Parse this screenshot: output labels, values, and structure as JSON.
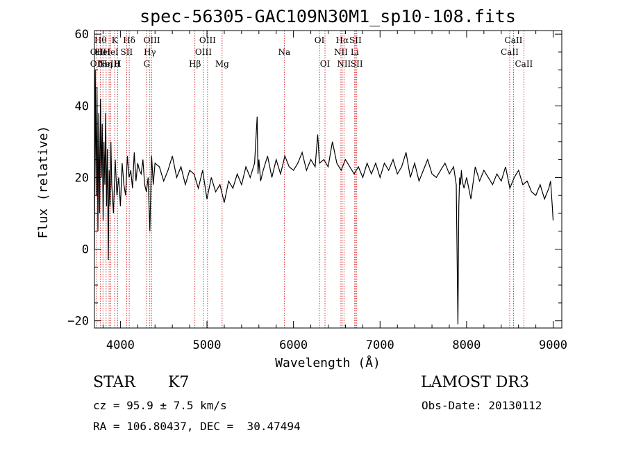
{
  "chart_data": {
    "type": "line",
    "title": "spec-56305-GAC109N30M1_sp10-108.fits",
    "xlabel": "Wavelength (Å)",
    "ylabel": "Flux (relative)",
    "xlim": [
      3700,
      9100
    ],
    "ylim": [
      -22,
      61
    ],
    "xticks": [
      4000,
      5000,
      6000,
      7000,
      8000,
      9000
    ],
    "yticks": [
      -20,
      0,
      20,
      40,
      60
    ],
    "series": [
      {
        "name": "flux",
        "x": [
          3700,
          3710,
          3720,
          3730,
          3740,
          3750,
          3760,
          3770,
          3780,
          3790,
          3800,
          3810,
          3820,
          3830,
          3840,
          3850,
          3860,
          3870,
          3880,
          3890,
          3900,
          3920,
          3940,
          3960,
          3980,
          4000,
          4020,
          4040,
          4060,
          4080,
          4100,
          4120,
          4140,
          4160,
          4180,
          4200,
          4220,
          4240,
          4260,
          4280,
          4300,
          4320,
          4340,
          4360,
          4380,
          4400,
          4450,
          4500,
          4550,
          4600,
          4650,
          4700,
          4750,
          4800,
          4850,
          4900,
          4950,
          5000,
          5050,
          5100,
          5150,
          5200,
          5250,
          5300,
          5350,
          5400,
          5450,
          5500,
          5550,
          5580,
          5590,
          5600,
          5620,
          5650,
          5700,
          5750,
          5800,
          5850,
          5900,
          5950,
          6000,
          6050,
          6100,
          6150,
          6200,
          6250,
          6280,
          6300,
          6350,
          6400,
          6450,
          6500,
          6550,
          6600,
          6650,
          6700,
          6750,
          6800,
          6850,
          6900,
          6950,
          7000,
          7050,
          7100,
          7150,
          7200,
          7250,
          7300,
          7350,
          7400,
          7450,
          7500,
          7550,
          7600,
          7650,
          7700,
          7750,
          7800,
          7850,
          7880,
          7900,
          7910,
          7920,
          7930,
          7940,
          7950,
          7970,
          8000,
          8050,
          8100,
          8150,
          8200,
          8250,
          8300,
          8350,
          8400,
          8450,
          8500,
          8550,
          8600,
          8650,
          8700,
          8750,
          8800,
          8850,
          8900,
          8950,
          8970,
          8990,
          9000
        ],
        "values": [
          0,
          50,
          15,
          45,
          5,
          38,
          10,
          42,
          20,
          35,
          8,
          30,
          18,
          38,
          12,
          28,
          -3,
          22,
          12,
          30,
          18,
          10,
          25,
          15,
          20,
          12,
          24,
          18,
          15,
          26,
          20,
          22,
          17,
          27,
          19,
          24,
          22,
          21,
          25,
          18,
          16,
          20,
          5,
          26,
          18,
          24,
          23,
          19,
          22,
          26,
          20,
          23,
          18,
          22,
          21,
          17,
          22,
          14,
          20,
          16,
          18,
          13,
          19,
          17,
          21,
          18,
          23,
          20,
          24,
          37,
          21,
          25,
          19,
          22,
          26,
          20,
          25,
          21,
          26,
          23,
          22,
          24,
          27,
          22,
          25,
          23,
          32,
          24,
          25,
          23,
          30,
          24,
          22,
          25,
          23,
          21,
          23,
          20,
          24,
          21,
          24,
          20,
          24,
          22,
          25,
          21,
          23,
          27,
          20,
          24,
          19,
          22,
          25,
          21,
          20,
          22,
          24,
          21,
          23,
          18,
          -21,
          12,
          20,
          18,
          22,
          19,
          17,
          20,
          14,
          23,
          19,
          22,
          20,
          18,
          21,
          19,
          23,
          17,
          20,
          22,
          18,
          19,
          16,
          15,
          18,
          14,
          17,
          19,
          12,
          8
        ]
      }
    ],
    "line_labels": [
      {
        "wl": 3727,
        "text": "OII",
        "row": 2
      },
      {
        "wl": 3727,
        "text": "OII",
        "row": 3
      },
      {
        "wl": 3770,
        "text": "Hθ",
        "row": 1
      },
      {
        "wl": 3798,
        "text": "HeI",
        "row": 2
      },
      {
        "wl": 3835,
        "text": "Hη",
        "row": 3
      },
      {
        "wl": 3869,
        "text": "NeIII",
        "row": 3
      },
      {
        "wl": 3889,
        "text": "HeI",
        "row": 2
      },
      {
        "wl": 3934,
        "text": "K",
        "row": 1
      },
      {
        "wl": 3969,
        "text": "H",
        "row": 3
      },
      {
        "wl": 4072,
        "text": "SII",
        "row": 2
      },
      {
        "wl": 4102,
        "text": "Hδ",
        "row": 1
      },
      {
        "wl": 4304,
        "text": "G",
        "row": 3
      },
      {
        "wl": 4340,
        "text": "Hγ",
        "row": 2
      },
      {
        "wl": 4363,
        "text": "OIII",
        "row": 1
      },
      {
        "wl": 4861,
        "text": "Hβ",
        "row": 3
      },
      {
        "wl": 4959,
        "text": "OIII",
        "row": 2
      },
      {
        "wl": 5007,
        "text": "OIII",
        "row": 1
      },
      {
        "wl": 5175,
        "text": "Mg",
        "row": 3
      },
      {
        "wl": 5893,
        "text": "Na",
        "row": 2
      },
      {
        "wl": 6300,
        "text": "OI",
        "row": 1
      },
      {
        "wl": 6364,
        "text": "OI",
        "row": 3
      },
      {
        "wl": 6548,
        "text": "NII",
        "row": 2
      },
      {
        "wl": 6563,
        "text": "Hα",
        "row": 1
      },
      {
        "wl": 6583,
        "text": "NII",
        "row": 3
      },
      {
        "wl": 6707,
        "text": "Li",
        "row": 2
      },
      {
        "wl": 6716,
        "text": "SII",
        "row": 1
      },
      {
        "wl": 6731,
        "text": "SII",
        "row": 3
      },
      {
        "wl": 8498,
        "text": "CaII",
        "row": 2
      },
      {
        "wl": 8542,
        "text": "CaII",
        "row": 1
      },
      {
        "wl": 8662,
        "text": "CaII",
        "row": 3
      }
    ]
  },
  "info": {
    "class": "STAR",
    "subclass": "K7",
    "survey": "LAMOST DR3",
    "cz": "cz = 95.9 ± 7.5 km/s",
    "obs_date": "Obs-Date: 20130112",
    "coords": "RA = 106.80437, DEC =  30.47494"
  },
  "colors": {
    "axis": "#000000",
    "spectrum": "#000000",
    "line_marker": "#cc0000"
  }
}
